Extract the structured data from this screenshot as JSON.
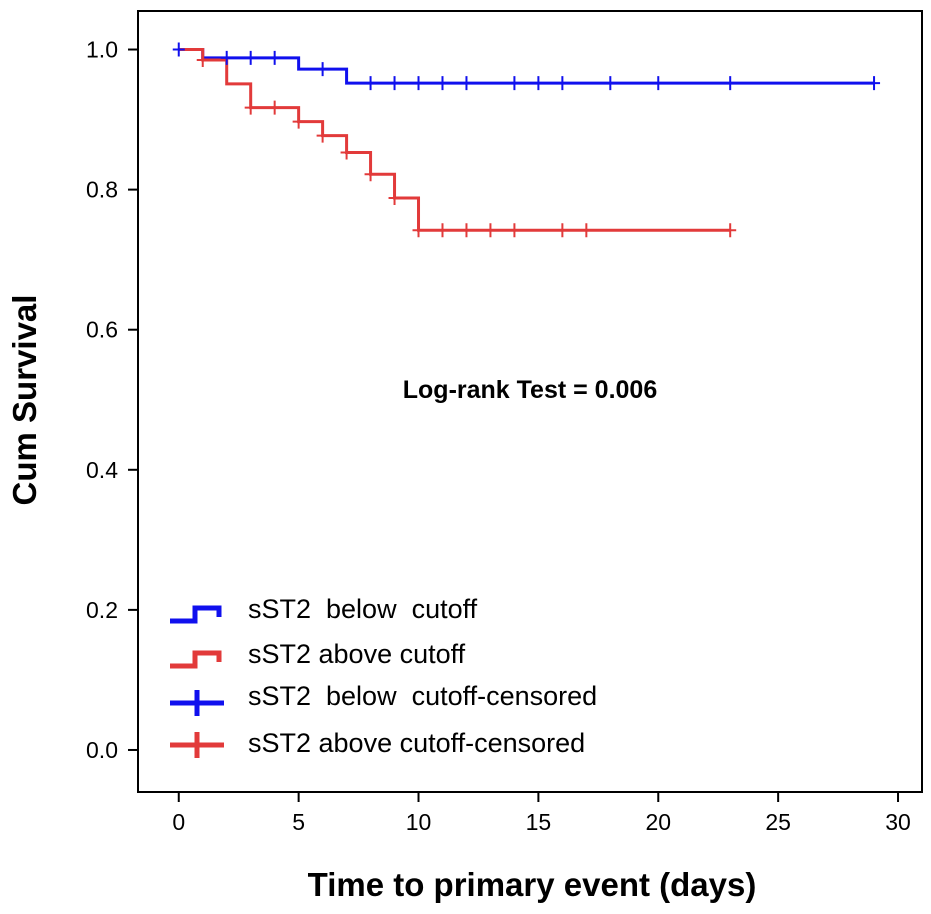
{
  "chart_data": {
    "type": "line",
    "subtype": "kaplan-meier",
    "title": "",
    "xlabel": "Time to primary event (days)",
    "ylabel": "Cum Survival",
    "xlim": [
      -1.7,
      31
    ],
    "ylim": [
      -0.06,
      1.055
    ],
    "xticks": [
      0,
      5,
      10,
      15,
      20,
      25,
      30
    ],
    "xtick_labels": [
      "0",
      "5",
      "10",
      "15",
      "20",
      "25",
      "30"
    ],
    "yticks": [
      0.0,
      0.2,
      0.4,
      0.6,
      0.8,
      1.0
    ],
    "ytick_labels": [
      "0.0",
      "0.2",
      "0.4",
      "0.6",
      "0.8",
      "1.0"
    ],
    "grid": false,
    "legend_position": "bottom-left",
    "annotation": "Log-rank Test = 0.006",
    "series": [
      {
        "name": "sST2  below  cutoff",
        "censored_name": "sST2  below  cutoff-censored",
        "color": "#1010ee",
        "steps": [
          [
            0,
            1.0
          ],
          [
            1,
            0.988
          ],
          [
            5,
            0.972
          ],
          [
            7,
            0.952
          ],
          [
            29,
            0.952
          ]
        ],
        "censored": [
          [
            0,
            1.0
          ],
          [
            2,
            0.988
          ],
          [
            3,
            0.988
          ],
          [
            4,
            0.988
          ],
          [
            6,
            0.972
          ],
          [
            8,
            0.952
          ],
          [
            9,
            0.952
          ],
          [
            10,
            0.952
          ],
          [
            11,
            0.952
          ],
          [
            12,
            0.952
          ],
          [
            14,
            0.952
          ],
          [
            15,
            0.952
          ],
          [
            16,
            0.952
          ],
          [
            18,
            0.952
          ],
          [
            20,
            0.952
          ],
          [
            23,
            0.952
          ],
          [
            29,
            0.952
          ]
        ]
      },
      {
        "name": "sST2 above cutoff",
        "censored_name": "sST2 above cutoff-censored",
        "color": "#e23a3a",
        "steps": [
          [
            0,
            1.0
          ],
          [
            1,
            0.985
          ],
          [
            2,
            0.951
          ],
          [
            3,
            0.917
          ],
          [
            5,
            0.897
          ],
          [
            6,
            0.877
          ],
          [
            7,
            0.853
          ],
          [
            8,
            0.822
          ],
          [
            9,
            0.788
          ],
          [
            10,
            0.742
          ],
          [
            23,
            0.742
          ]
        ],
        "censored": [
          [
            1,
            0.985
          ],
          [
            3,
            0.917
          ],
          [
            4,
            0.917
          ],
          [
            5,
            0.897
          ],
          [
            6,
            0.877
          ],
          [
            7,
            0.853
          ],
          [
            8,
            0.822
          ],
          [
            9,
            0.788
          ],
          [
            10,
            0.742
          ],
          [
            11,
            0.742
          ],
          [
            12,
            0.742
          ],
          [
            13,
            0.742
          ],
          [
            14,
            0.742
          ],
          [
            16,
            0.742
          ],
          [
            17,
            0.742
          ],
          [
            23,
            0.742
          ]
        ]
      }
    ]
  }
}
